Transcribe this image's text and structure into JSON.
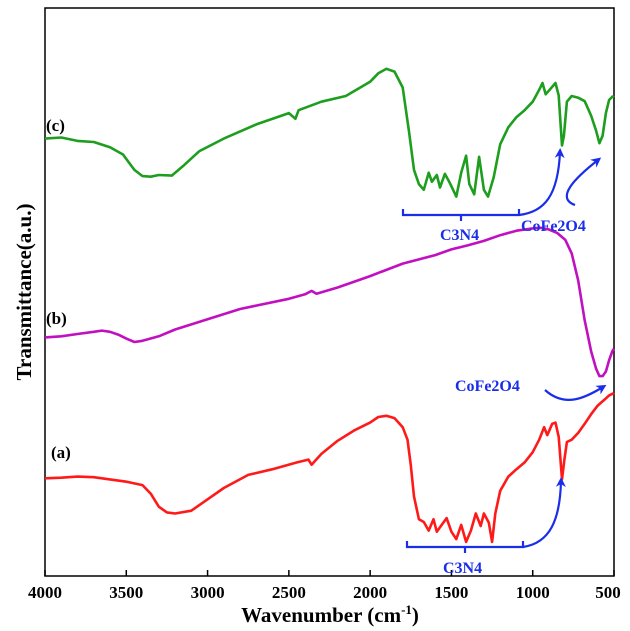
{
  "chart_data": {
    "type": "line",
    "title": "",
    "xlabel": "Wavenumber (cm",
    "xlabel_sup": "-1",
    "xlabel_close": ")",
    "ylabel": "Transmittance(a.u.)",
    "xlim": [
      4000,
      500
    ],
    "x_reversed": true,
    "xticks": [
      4000,
      3500,
      3000,
      2500,
      2000,
      1500,
      1000,
      500
    ],
    "xtick_labels": [
      "4000",
      "3500",
      "3000",
      "2500",
      "2000",
      "1500",
      "1000",
      "500"
    ],
    "y_scale": "arbitrary units, curves offset vertically (0 = bottom of frame, 1 = top)",
    "grid": false,
    "series": [
      {
        "name": "(c)",
        "color": "#1e9e1e",
        "points": [
          [
            4000,
            0.77
          ],
          [
            3900,
            0.772
          ],
          [
            3800,
            0.766
          ],
          [
            3700,
            0.764
          ],
          [
            3600,
            0.755
          ],
          [
            3520,
            0.742
          ],
          [
            3450,
            0.715
          ],
          [
            3400,
            0.704
          ],
          [
            3350,
            0.703
          ],
          [
            3300,
            0.706
          ],
          [
            3220,
            0.705
          ],
          [
            3150,
            0.722
          ],
          [
            3050,
            0.748
          ],
          [
            2900,
            0.77
          ],
          [
            2700,
            0.795
          ],
          [
            2500,
            0.815
          ],
          [
            2460,
            0.805
          ],
          [
            2440,
            0.82
          ],
          [
            2300,
            0.835
          ],
          [
            2150,
            0.845
          ],
          [
            2000,
            0.87
          ],
          [
            1950,
            0.885
          ],
          [
            1900,
            0.893
          ],
          [
            1850,
            0.888
          ],
          [
            1800,
            0.86
          ],
          [
            1760,
            0.78
          ],
          [
            1730,
            0.715
          ],
          [
            1700,
            0.69
          ],
          [
            1670,
            0.68
          ],
          [
            1640,
            0.71
          ],
          [
            1620,
            0.694
          ],
          [
            1590,
            0.706
          ],
          [
            1570,
            0.684
          ],
          [
            1540,
            0.708
          ],
          [
            1510,
            0.692
          ],
          [
            1470,
            0.668
          ],
          [
            1440,
            0.71
          ],
          [
            1410,
            0.74
          ],
          [
            1390,
            0.69
          ],
          [
            1360,
            0.672
          ],
          [
            1330,
            0.738
          ],
          [
            1300,
            0.68
          ],
          [
            1275,
            0.668
          ],
          [
            1240,
            0.702
          ],
          [
            1200,
            0.76
          ],
          [
            1150,
            0.79
          ],
          [
            1100,
            0.808
          ],
          [
            1050,
            0.82
          ],
          [
            1000,
            0.835
          ],
          [
            960,
            0.856
          ],
          [
            940,
            0.868
          ],
          [
            920,
            0.848
          ],
          [
            890,
            0.858
          ],
          [
            860,
            0.868
          ],
          [
            840,
            0.846
          ],
          [
            820,
            0.758
          ],
          [
            808,
            0.775
          ],
          [
            790,
            0.835
          ],
          [
            760,
            0.845
          ],
          [
            720,
            0.842
          ],
          [
            680,
            0.836
          ],
          [
            640,
            0.81
          ],
          [
            610,
            0.784
          ],
          [
            590,
            0.762
          ],
          [
            570,
            0.775
          ],
          [
            550,
            0.815
          ],
          [
            530,
            0.838
          ],
          [
            510,
            0.844
          ],
          [
            500,
            0.843
          ]
        ]
      },
      {
        "name": "(b)",
        "color": "#c010c0",
        "points": [
          [
            4000,
            0.42
          ],
          [
            3900,
            0.422
          ],
          [
            3800,
            0.426
          ],
          [
            3700,
            0.43
          ],
          [
            3650,
            0.432
          ],
          [
            3600,
            0.43
          ],
          [
            3550,
            0.425
          ],
          [
            3500,
            0.418
          ],
          [
            3450,
            0.412
          ],
          [
            3400,
            0.414
          ],
          [
            3300,
            0.422
          ],
          [
            3200,
            0.434
          ],
          [
            3000,
            0.452
          ],
          [
            2800,
            0.47
          ],
          [
            2500,
            0.488
          ],
          [
            2400,
            0.496
          ],
          [
            2360,
            0.502
          ],
          [
            2330,
            0.497
          ],
          [
            2200,
            0.508
          ],
          [
            2000,
            0.528
          ],
          [
            1800,
            0.55
          ],
          [
            1600,
            0.565
          ],
          [
            1500,
            0.575
          ],
          [
            1400,
            0.582
          ],
          [
            1300,
            0.59
          ],
          [
            1200,
            0.6
          ],
          [
            1100,
            0.608
          ],
          [
            1000,
            0.612
          ],
          [
            950,
            0.613
          ],
          [
            900,
            0.61
          ],
          [
            850,
            0.604
          ],
          [
            800,
            0.592
          ],
          [
            760,
            0.568
          ],
          [
            720,
            0.52
          ],
          [
            680,
            0.45
          ],
          [
            640,
            0.395
          ],
          [
            610,
            0.365
          ],
          [
            590,
            0.352
          ],
          [
            570,
            0.352
          ],
          [
            550,
            0.36
          ],
          [
            530,
            0.38
          ],
          [
            510,
            0.396
          ],
          [
            500,
            0.4
          ]
        ]
      },
      {
        "name": "(a)",
        "color": "#ff1a1a",
        "points": [
          [
            4000,
            0.172
          ],
          [
            3900,
            0.173
          ],
          [
            3800,
            0.175
          ],
          [
            3700,
            0.174
          ],
          [
            3600,
            0.17
          ],
          [
            3500,
            0.166
          ],
          [
            3400,
            0.16
          ],
          [
            3350,
            0.145
          ],
          [
            3300,
            0.122
          ],
          [
            3250,
            0.112
          ],
          [
            3200,
            0.11
          ],
          [
            3100,
            0.115
          ],
          [
            3000,
            0.135
          ],
          [
            2900,
            0.155
          ],
          [
            2750,
            0.178
          ],
          [
            2600,
            0.188
          ],
          [
            2450,
            0.2
          ],
          [
            2380,
            0.205
          ],
          [
            2360,
            0.196
          ],
          [
            2300,
            0.215
          ],
          [
            2200,
            0.238
          ],
          [
            2100,
            0.256
          ],
          [
            2000,
            0.27
          ],
          [
            1950,
            0.28
          ],
          [
            1900,
            0.282
          ],
          [
            1850,
            0.278
          ],
          [
            1800,
            0.262
          ],
          [
            1770,
            0.24
          ],
          [
            1750,
            0.195
          ],
          [
            1730,
            0.14
          ],
          [
            1700,
            0.1
          ],
          [
            1670,
            0.095
          ],
          [
            1640,
            0.08
          ],
          [
            1610,
            0.1
          ],
          [
            1590,
            0.078
          ],
          [
            1560,
            0.09
          ],
          [
            1530,
            0.102
          ],
          [
            1500,
            0.078
          ],
          [
            1470,
            0.065
          ],
          [
            1440,
            0.09
          ],
          [
            1410,
            0.06
          ],
          [
            1380,
            0.08
          ],
          [
            1350,
            0.11
          ],
          [
            1320,
            0.088
          ],
          [
            1300,
            0.11
          ],
          [
            1270,
            0.094
          ],
          [
            1250,
            0.06
          ],
          [
            1230,
            0.11
          ],
          [
            1200,
            0.15
          ],
          [
            1150,
            0.175
          ],
          [
            1100,
            0.188
          ],
          [
            1050,
            0.2
          ],
          [
            1000,
            0.218
          ],
          [
            960,
            0.24
          ],
          [
            930,
            0.262
          ],
          [
            910,
            0.248
          ],
          [
            880,
            0.268
          ],
          [
            860,
            0.27
          ],
          [
            840,
            0.245
          ],
          [
            820,
            0.17
          ],
          [
            805,
            0.205
          ],
          [
            790,
            0.236
          ],
          [
            760,
            0.24
          ],
          [
            720,
            0.252
          ],
          [
            680,
            0.268
          ],
          [
            640,
            0.285
          ],
          [
            600,
            0.3
          ],
          [
            560,
            0.31
          ],
          [
            530,
            0.318
          ],
          [
            500,
            0.322
          ]
        ]
      }
    ],
    "series_labels": [
      "(c)",
      "(b)",
      "(a)"
    ],
    "annotations": [
      {
        "text": "C3N4",
        "color": "#1a2eea",
        "series": "(c)"
      },
      {
        "text": "CoFe2O4",
        "color": "#1a2eea",
        "series": "(c)"
      },
      {
        "text": "CoFe2O4",
        "color": "#1a2eea",
        "series": "(b)"
      },
      {
        "text": "C3N4",
        "color": "#1a2eea",
        "series": "(a)"
      }
    ],
    "annotation_color": "#1a2eea",
    "axis_color": "#000000"
  }
}
